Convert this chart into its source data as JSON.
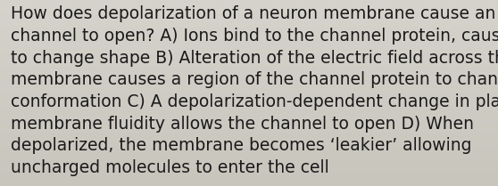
{
  "lines": [
    "How does depolarization of a neuron membrane cause an ion",
    "channel to open? A) Ions bind to the channel protein, causing it",
    "to change shape B) Alteration of the electric field across the",
    "membrane causes a region of the channel protein to change",
    "conformation C) A depolarization-dependent change in plasma",
    "membrane fluidity allows the channel to open D) When",
    "depolarized, the membrane becomes ‘leakier’ allowing",
    "uncharged molecules to enter the cell"
  ],
  "background_color": "#d0cdc6",
  "background_color_bottom": "#c8c4bc",
  "text_color": "#1a1a1a",
  "font_size": 13.5,
  "fig_width": 5.58,
  "fig_height": 2.09,
  "dpi": 100
}
